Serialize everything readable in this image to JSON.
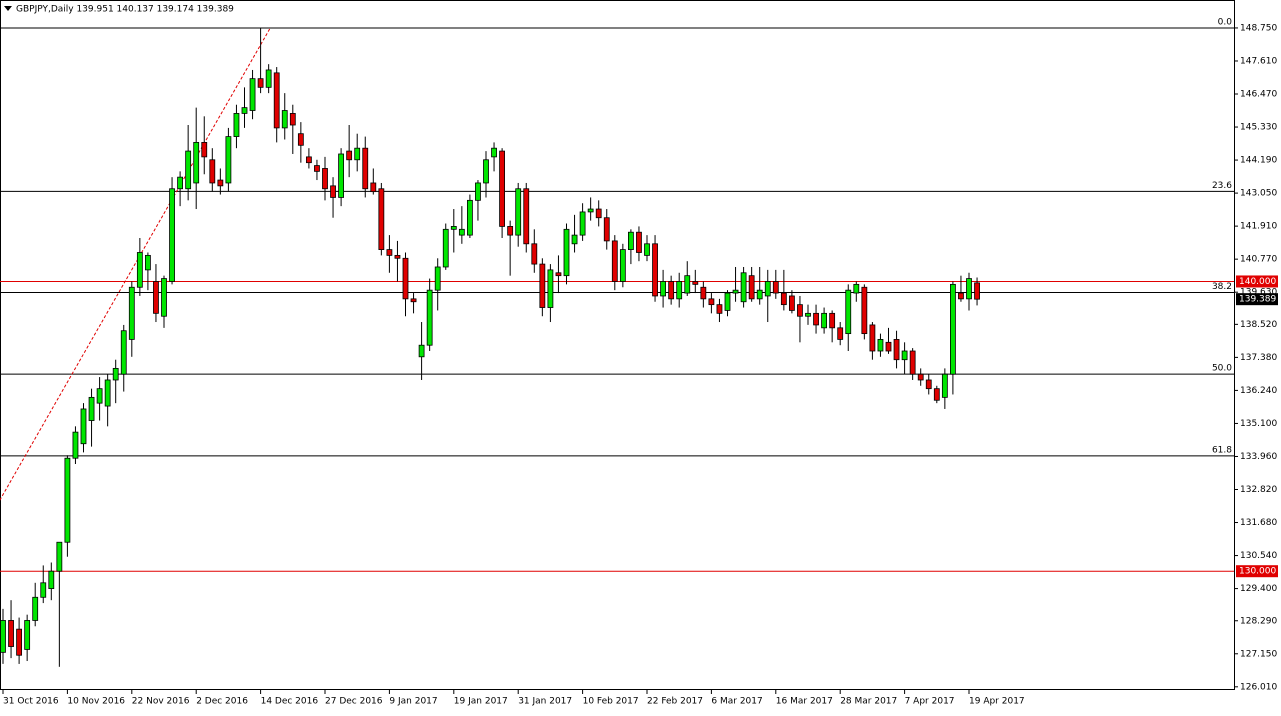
{
  "chart_data": {
    "type": "candlestick",
    "title": "GBPJPY,Daily  139.951 140.137 139.174 139.389",
    "categories": [
      "31 Oct 2016",
      null,
      null,
      null,
      null,
      null,
      null,
      null,
      "10 Nov 2016",
      null,
      null,
      null,
      null,
      null,
      null,
      null,
      "22 Nov 2016",
      null,
      null,
      null,
      null,
      null,
      null,
      null,
      "2 Dec 2016",
      null,
      null,
      null,
      null,
      null,
      null,
      null,
      "14 Dec 2016",
      null,
      null,
      null,
      null,
      null,
      null,
      null,
      "27 Dec 2016",
      null,
      null,
      null,
      null,
      null,
      null,
      null,
      "9 Jan 2017",
      null,
      null,
      null,
      null,
      null,
      null,
      null,
      "19 Jan 2017",
      null,
      null,
      null,
      null,
      null,
      null,
      null,
      "31 Jan 2017",
      null,
      null,
      null,
      null,
      null,
      null,
      null,
      "10 Feb 2017",
      null,
      null,
      null,
      null,
      null,
      null,
      null,
      "22 Feb 2017",
      null,
      null,
      null,
      null,
      null,
      null,
      null,
      "6 Mar 2017",
      null,
      null,
      null,
      null,
      null,
      null,
      null,
      "16 Mar 2017",
      null,
      null,
      null,
      null,
      null,
      null,
      null,
      "28 Mar 2017",
      null,
      null,
      null,
      null,
      null,
      null,
      null,
      "7 Apr 2017",
      null,
      null,
      null,
      null,
      null,
      null,
      null,
      "19 Apr 2017",
      null
    ],
    "open": [
      127.2,
      128.3,
      128.0,
      127.3,
      128.3,
      129.1,
      129.4,
      130.0,
      131.0,
      133.9,
      134.4,
      135.2,
      135.8,
      135.7,
      136.6,
      136.8,
      138.0,
      139.8,
      140.4,
      140.0,
      138.8,
      140.0,
      143.2,
      143.2,
      143.4,
      144.8,
      144.2,
      143.5,
      143.4,
      145.0,
      145.8,
      145.9,
      147.0,
      146.7,
      147.2,
      145.3,
      145.8,
      145.1,
      144.3,
      144.0,
      143.9,
      143.3,
      142.9,
      144.5,
      144.2,
      144.6,
      143.4,
      143.2,
      141.1,
      140.9,
      140.8,
      139.4,
      137.4,
      137.8,
      139.7,
      140.5,
      141.8,
      141.6,
      141.6,
      142.8,
      143.4,
      144.3,
      144.5,
      141.9,
      141.6,
      143.2,
      141.3,
      140.6,
      139.1,
      140.3,
      140.2,
      141.3,
      141.6,
      142.4,
      142.5,
      142.2,
      141.4,
      140.0,
      141.1,
      141.7,
      140.9,
      141.3,
      139.5,
      140.0,
      139.4,
      139.6,
      140.0,
      139.8,
      139.4,
      139.2,
      139.0,
      139.6,
      139.3,
      140.2,
      139.4,
      139.5,
      140.0,
      139.6,
      139.5,
      139.2,
      138.8,
      138.9,
      138.4,
      138.9,
      138.4,
      138.2,
      139.6,
      139.8,
      138.5,
      137.6,
      137.9,
      138.0,
      137.3,
      137.6,
      136.8,
      136.6,
      136.3,
      136.0,
      136.8,
      139.6,
      139.4,
      139.951
    ],
    "high": [
      128.7,
      129.0,
      128.4,
      128.5,
      129.6,
      130.2,
      130.3,
      131.0,
      134.0,
      135.0,
      135.8,
      136.3,
      136.7,
      136.8,
      137.3,
      138.5,
      140.0,
      141.5,
      141.0,
      140.6,
      140.2,
      143.6,
      143.8,
      145.4,
      146.0,
      145.7,
      144.6,
      143.9,
      145.3,
      146.1,
      146.7,
      147.3,
      148.75,
      147.5,
      147.4,
      146.5,
      146.1,
      145.5,
      144.6,
      144.2,
      144.3,
      143.6,
      144.6,
      145.4,
      145.1,
      145.0,
      143.9,
      143.4,
      141.6,
      141.4,
      141.0,
      139.6,
      138.6,
      140.1,
      140.8,
      142.0,
      142.5,
      142.6,
      143.0,
      143.5,
      144.5,
      144.8,
      144.6,
      142.1,
      143.4,
      143.4,
      141.8,
      140.8,
      140.6,
      140.9,
      142.0,
      142.3,
      142.7,
      142.9,
      142.8,
      142.5,
      141.6,
      141.3,
      141.8,
      141.9,
      141.6,
      141.6,
      140.4,
      140.2,
      140.3,
      140.7,
      140.4,
      140.0,
      139.6,
      139.4,
      139.7,
      140.5,
      140.5,
      140.5,
      140.5,
      140.4,
      140.4,
      140.4,
      139.7,
      139.5,
      139.2,
      139.2,
      139.1,
      139.0,
      138.6,
      139.9,
      140.0,
      139.9,
      138.6,
      138.2,
      138.4,
      138.3,
      137.9,
      137.7,
      137.0,
      136.8,
      136.4,
      137.0,
      140.0,
      140.2,
      140.3,
      140.137
    ],
    "low": [
      126.8,
      127.0,
      126.8,
      126.9,
      128.1,
      128.9,
      129.0,
      126.7,
      130.5,
      133.7,
      134.1,
      134.3,
      135.2,
      135.0,
      135.8,
      136.2,
      137.4,
      139.5,
      139.7,
      138.6,
      138.4,
      139.9,
      142.6,
      142.8,
      142.5,
      143.7,
      143.1,
      143.0,
      143.1,
      144.6,
      145.3,
      145.6,
      146.5,
      146.5,
      144.8,
      144.9,
      144.4,
      144.1,
      143.9,
      143.5,
      142.8,
      142.2,
      142.6,
      143.6,
      143.8,
      142.9,
      143.0,
      140.9,
      140.3,
      140.0,
      138.8,
      138.9,
      136.6,
      137.6,
      139.0,
      140.4,
      141.0,
      141.3,
      141.5,
      142.1,
      142.9,
      143.8,
      141.5,
      140.2,
      141.2,
      141.0,
      140.3,
      138.8,
      138.6,
      139.6,
      139.9,
      141.0,
      141.4,
      142.1,
      141.9,
      141.1,
      139.7,
      139.8,
      140.6,
      140.7,
      140.7,
      139.3,
      139.1,
      139.2,
      139.1,
      139.5,
      139.6,
      139.1,
      138.9,
      138.6,
      138.8,
      139.3,
      139.1,
      139.3,
      139.2,
      138.6,
      139.4,
      139.0,
      138.9,
      137.9,
      138.5,
      138.2,
      138.2,
      137.9,
      137.8,
      137.6,
      139.3,
      138.0,
      137.3,
      137.4,
      137.5,
      137.0,
      136.8,
      136.6,
      136.4,
      136.1,
      135.8,
      135.6,
      136.1,
      139.3,
      139.0,
      139.174
    ],
    "close": [
      128.3,
      127.4,
      127.1,
      128.3,
      129.1,
      129.6,
      130.0,
      131.0,
      133.9,
      134.8,
      135.6,
      136.0,
      136.3,
      136.6,
      137.0,
      138.3,
      139.8,
      141.0,
      140.9,
      138.9,
      140.1,
      143.2,
      143.6,
      144.5,
      144.8,
      144.3,
      143.4,
      143.3,
      145.0,
      145.8,
      146.0,
      147.0,
      146.7,
      147.3,
      145.3,
      145.9,
      145.4,
      144.7,
      144.1,
      143.8,
      143.2,
      142.9,
      144.4,
      144.2,
      144.6,
      143.2,
      143.1,
      141.1,
      140.9,
      140.8,
      139.4,
      139.3,
      137.8,
      139.7,
      140.5,
      141.8,
      141.9,
      141.8,
      142.8,
      143.4,
      144.2,
      144.6,
      141.9,
      141.6,
      143.2,
      141.3,
      140.6,
      139.1,
      140.4,
      140.2,
      141.8,
      141.6,
      142.4,
      142.5,
      142.2,
      141.4,
      140.0,
      141.1,
      141.7,
      141.0,
      141.3,
      139.5,
      140.0,
      139.4,
      140.0,
      140.2,
      139.9,
      139.4,
      139.2,
      138.9,
      139.6,
      139.7,
      140.3,
      139.4,
      139.7,
      140.0,
      139.6,
      139.2,
      139.0,
      138.8,
      138.9,
      138.5,
      138.9,
      138.4,
      138.0,
      139.7,
      139.9,
      138.2,
      137.6,
      138.0,
      137.6,
      137.3,
      137.6,
      136.8,
      136.6,
      136.3,
      135.9,
      136.8,
      139.9,
      139.4,
      140.1,
      139.389
    ],
    "up_color": "#00e600",
    "down_color": "#e00000",
    "ylim": [
      125.9,
      149.68
    ],
    "yticks": [
      {
        "value": 148.75,
        "label": "148.750"
      },
      {
        "value": 147.61,
        "label": "147.610"
      },
      {
        "value": 146.47,
        "label": "146.470"
      },
      {
        "value": 145.33,
        "label": "145.330"
      },
      {
        "value": 144.19,
        "label": "144.190"
      },
      {
        "value": 143.05,
        "label": "143.050"
      },
      {
        "value": 141.91,
        "label": "141.910"
      },
      {
        "value": 140.77,
        "label": "140.770"
      },
      {
        "value": 139.63,
        "label": "139.630"
      },
      {
        "value": 138.52,
        "label": "138.520"
      },
      {
        "value": 137.38,
        "label": "137.380"
      },
      {
        "value": 136.24,
        "label": "136.240"
      },
      {
        "value": 135.1,
        "label": "135.100"
      },
      {
        "value": 133.96,
        "label": "133.960"
      },
      {
        "value": 132.82,
        "label": "132.820"
      },
      {
        "value": 131.68,
        "label": "131.680"
      },
      {
        "value": 130.54,
        "label": "130.540"
      },
      {
        "value": 129.4,
        "label": "129.400"
      },
      {
        "value": 128.29,
        "label": "128.290"
      },
      {
        "value": 127.15,
        "label": "127.150"
      },
      {
        "value": 126.01,
        "label": "126.010"
      }
    ],
    "fib_levels": [
      {
        "label": "0.0",
        "value": 148.75
      },
      {
        "label": "23.6",
        "value": 143.11
      },
      {
        "label": "38.2",
        "value": 139.62
      },
      {
        "label": "50.0",
        "value": 136.8
      },
      {
        "label": "61.8",
        "value": 133.98
      }
    ],
    "hlines": [
      {
        "value": 140,
        "label": "140.000",
        "color": "#e00000"
      },
      {
        "value": 130,
        "label": "130.000",
        "color": "#e00000"
      }
    ],
    "last_price": {
      "value": 139.389,
      "label": "139.389"
    },
    "trend_line": {
      "x": [
        -0.4,
        33.2
      ],
      "y": [
        132.45,
        148.75
      ],
      "color": "#e00000"
    }
  }
}
